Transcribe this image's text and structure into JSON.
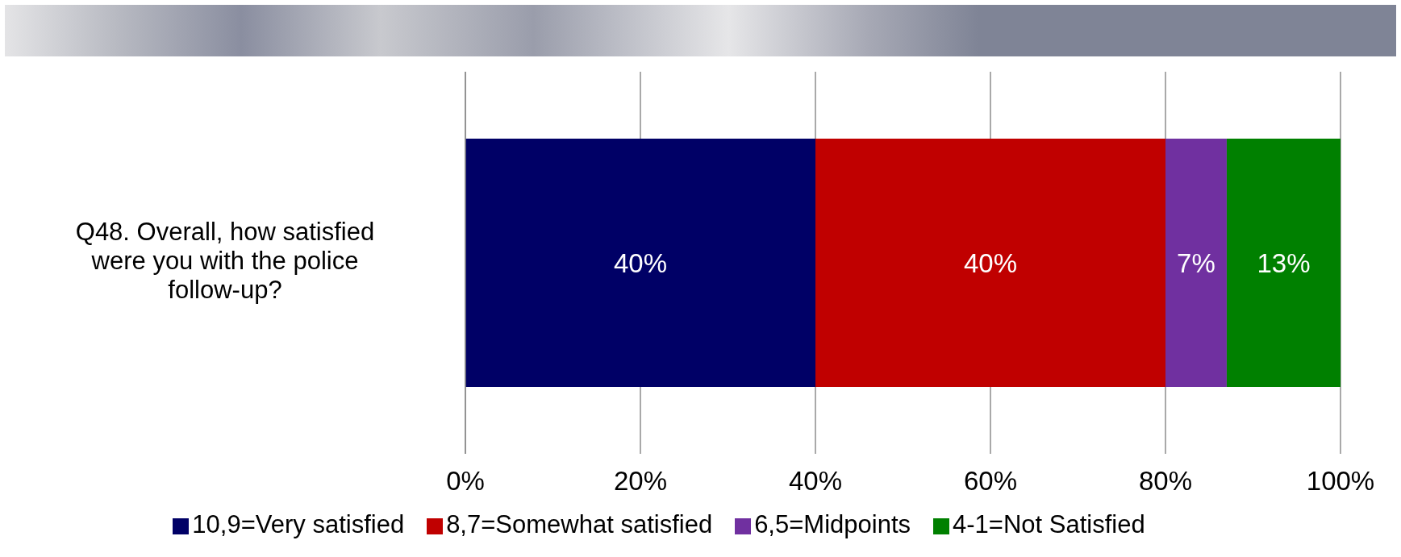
{
  "chart_data": {
    "type": "bar",
    "orientation": "horizontal",
    "stacked": true,
    "categories": [
      "Q48. Overall, how satisfied were you with the police follow-up?"
    ],
    "series": [
      {
        "name": "10,9=Very satisfied",
        "color": "#000066",
        "values": [
          40
        ],
        "value_labels": [
          "40%"
        ]
      },
      {
        "name": "8,7=Somewhat satisfied",
        "color": "#c00000",
        "values": [
          40
        ],
        "value_labels": [
          "40%"
        ]
      },
      {
        "name": "6,5=Midpoints",
        "color": "#7030a0",
        "values": [
          7
        ],
        "value_labels": [
          "7%"
        ]
      },
      {
        "name": "4-1=Not Satisfied",
        "color": "#008000",
        "values": [
          13
        ],
        "value_labels": [
          "13%"
        ]
      }
    ],
    "xlim": [
      0,
      100
    ],
    "xticks": [
      {
        "value": 0,
        "label": "0%"
      },
      {
        "value": 20,
        "label": "20%"
      },
      {
        "value": 40,
        "label": "40%"
      },
      {
        "value": 60,
        "label": "60%"
      },
      {
        "value": 80,
        "label": "80%"
      },
      {
        "value": 100,
        "label": "100%"
      }
    ],
    "grid": "x",
    "legend": "bottom"
  }
}
